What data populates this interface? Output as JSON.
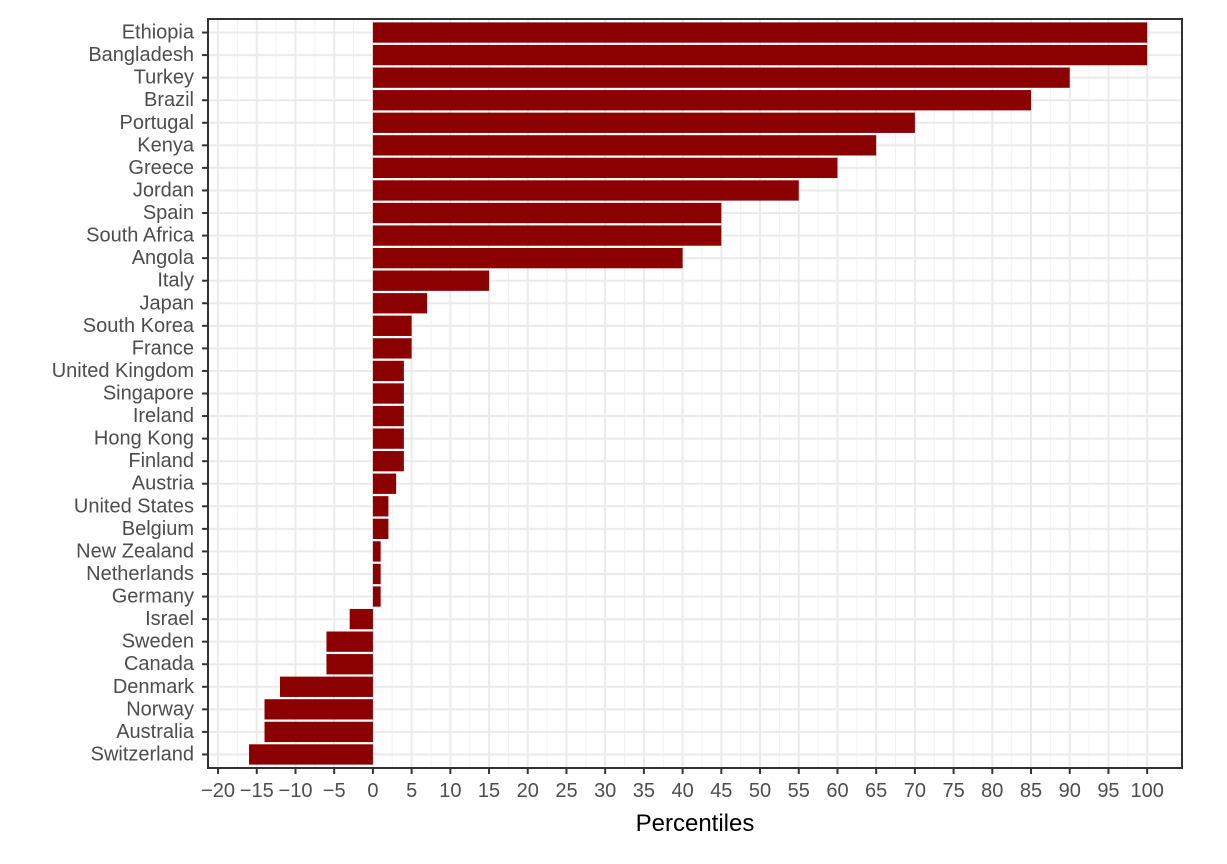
{
  "chart_data": {
    "type": "bar",
    "orientation": "horizontal",
    "title": "",
    "xlabel": "Percentiles",
    "ylabel": "",
    "xlim": [
      -21.3,
      104.5
    ],
    "grid": true,
    "legend": "none",
    "bar_color": "#8b0000",
    "x_ticks": [
      -20,
      -15,
      -10,
      -5,
      0,
      5,
      10,
      15,
      20,
      25,
      30,
      35,
      40,
      45,
      50,
      55,
      60,
      65,
      70,
      75,
      80,
      85,
      90,
      95,
      100
    ],
    "x_tick_labels": [
      "−20",
      "−15",
      "−10",
      "−5",
      "0",
      "5",
      "10",
      "15",
      "20",
      "25",
      "30",
      "35",
      "40",
      "45",
      "50",
      "55",
      "60",
      "65",
      "70",
      "75",
      "80",
      "85",
      "90",
      "95",
      "100"
    ],
    "categories": [
      "Ethiopia",
      "Bangladesh",
      "Turkey",
      "Brazil",
      "Portugal",
      "Kenya",
      "Greece",
      "Jordan",
      "Spain",
      "South Africa",
      "Angola",
      "Italy",
      "Japan",
      "South Korea",
      "France",
      "United Kingdom",
      "Singapore",
      "Ireland",
      "Hong Kong",
      "Finland",
      "Austria",
      "United States",
      "Belgium",
      "New Zealand",
      "Netherlands",
      "Germany",
      "Israel",
      "Sweden",
      "Canada",
      "Denmark",
      "Norway",
      "Australia",
      "Switzerland"
    ],
    "values": [
      100,
      100,
      90,
      85,
      70,
      65,
      60,
      55,
      45,
      45,
      40,
      15,
      7,
      5,
      5,
      4,
      4,
      4,
      4,
      4,
      3,
      2,
      2,
      1,
      1,
      1,
      -3,
      -6,
      -6,
      -12,
      -14,
      -14,
      -16
    ]
  }
}
